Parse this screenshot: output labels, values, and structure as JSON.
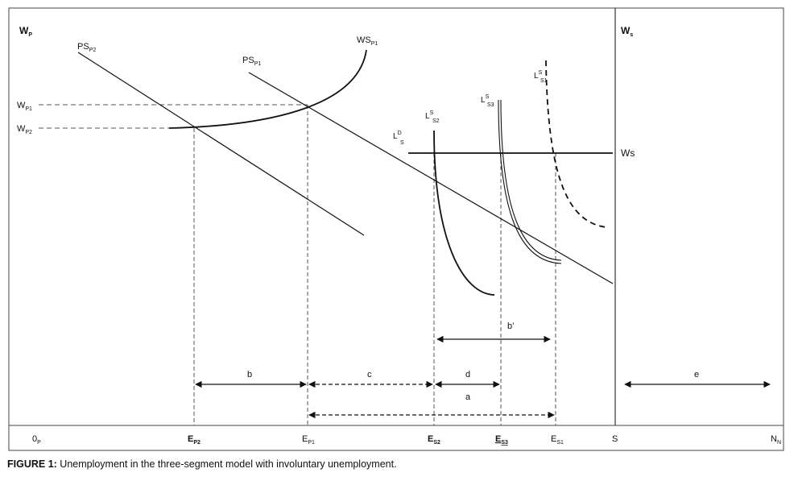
{
  "axes": {
    "y_left": {
      "main": "W",
      "sub": "P"
    },
    "y_right": {
      "main": "W",
      "sub": "s"
    },
    "origin": {
      "main": "0",
      "sub": "P"
    }
  },
  "wage_ticks": {
    "wp1": {
      "main": "W",
      "sub": "P1"
    },
    "wp2": {
      "main": "W",
      "sub": "P2"
    }
  },
  "curve_labels": {
    "ps_p2": {
      "main": "PS",
      "sub": "P2"
    },
    "ps_p1": {
      "main": "PS",
      "sub": "P1"
    },
    "ws_p1": {
      "main": "WS",
      "sub": "P1"
    },
    "ld_s": {
      "main": "L",
      "sup": "D",
      "sub": "S"
    },
    "ls_s2": {
      "main": "L",
      "sup": "S",
      "sub": "S2"
    },
    "ls_s3": {
      "main": "L",
      "sup": "S",
      "sub": "S3"
    },
    "ls_s1": {
      "main": "L",
      "sup": "S",
      "sub": "S1"
    },
    "ws_line": "Ws"
  },
  "x_ticks": {
    "ep2": {
      "main": "E",
      "sub": "P2"
    },
    "ep1": {
      "main": "E",
      "sub": "P1"
    },
    "es2": {
      "main": "E",
      "sub": "S2"
    },
    "es3": {
      "main": "E",
      "sub": "S3"
    },
    "es1": {
      "main": "E",
      "sub": "S1"
    },
    "s": {
      "main": "S",
      "sub": ""
    },
    "nn": {
      "main": "N",
      "sub": "N"
    }
  },
  "intervals": {
    "b": "b",
    "c": "c",
    "d": "d",
    "a": "a",
    "b_prime": "b’",
    "e": "e"
  },
  "caption": {
    "label": "FIGURE 1:",
    "text": " Unemployment in the three-segment model with involuntary unemployment."
  },
  "colors": {
    "ink": "#111111",
    "frame": "#444444",
    "guide": "#555555"
  }
}
